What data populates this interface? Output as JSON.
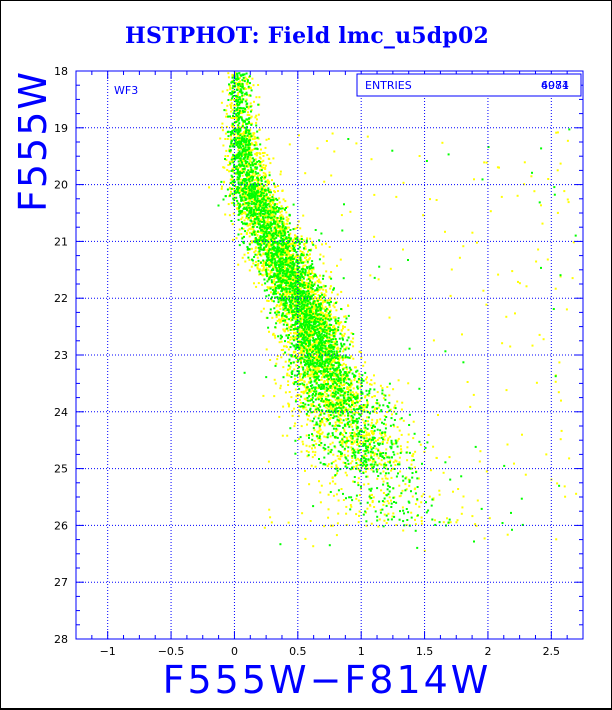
{
  "title": "HSTPHOT: Field lmc_u5dp02",
  "colors": {
    "title": "#0000ff",
    "frame": "#0000ff",
    "grid": "#0000ff",
    "series_a": "#ffff00",
    "series_b": "#00ff00"
  },
  "chart_data": {
    "type": "scatter",
    "title": "HSTPHOT: Field lmc_u5dp02",
    "xlabel": "F555W−F814W",
    "ylabel": "F555W",
    "xlim": [
      -1.25,
      2.75
    ],
    "ylim": [
      28,
      18
    ],
    "y_inverted": true,
    "xticks": [
      "−1",
      "−0.5",
      "0",
      "0.5",
      "1",
      "1.5",
      "2",
      "2.5"
    ],
    "xtick_values": [
      -1,
      -0.5,
      0,
      0.5,
      1,
      1.5,
      2,
      2.5
    ],
    "yticks": [
      "18",
      "19",
      "20",
      "21",
      "22",
      "23",
      "24",
      "25",
      "26",
      "27",
      "28"
    ],
    "ytick_values": [
      18,
      19,
      20,
      21,
      22,
      23,
      24,
      25,
      26,
      27,
      28
    ],
    "grid": true,
    "panel_label": "WF3",
    "stats_box": {
      "label": "ENTRIES",
      "values": [
        "6974",
        "4081"
      ]
    },
    "series": [
      {
        "color": "#ffff00",
        "sequence": [
          {
            "mag": 18.0,
            "color": 0.03,
            "width": 0.05,
            "n": 180
          },
          {
            "mag": 19.0,
            "color": 0.05,
            "width": 0.07,
            "n": 340
          },
          {
            "mag": 20.0,
            "color": 0.12,
            "width": 0.1,
            "n": 640
          },
          {
            "mag": 21.0,
            "color": 0.32,
            "width": 0.12,
            "n": 820
          },
          {
            "mag": 22.0,
            "color": 0.52,
            "width": 0.12,
            "n": 880
          },
          {
            "mag": 23.0,
            "color": 0.66,
            "width": 0.13,
            "n": 700
          },
          {
            "mag": 24.0,
            "color": 0.84,
            "width": 0.18,
            "n": 380
          },
          {
            "mag": 25.0,
            "color": 1.05,
            "width": 0.25,
            "n": 140
          },
          {
            "mag": 26.0,
            "color": 1.3,
            "width": 0.3,
            "n": 0
          }
        ],
        "field_stars": 180
      },
      {
        "color": "#00ff00",
        "sequence": [
          {
            "mag": 18.0,
            "color": 0.03,
            "width": 0.04,
            "n": 160
          },
          {
            "mag": 19.0,
            "color": 0.04,
            "width": 0.05,
            "n": 320
          },
          {
            "mag": 20.0,
            "color": 0.1,
            "width": 0.08,
            "n": 520
          },
          {
            "mag": 21.0,
            "color": 0.31,
            "width": 0.11,
            "n": 600
          },
          {
            "mag": 22.0,
            "color": 0.51,
            "width": 0.11,
            "n": 620
          },
          {
            "mag": 23.0,
            "color": 0.66,
            "width": 0.12,
            "n": 520
          },
          {
            "mag": 24.0,
            "color": 0.86,
            "width": 0.17,
            "n": 300
          },
          {
            "mag": 25.0,
            "color": 1.08,
            "width": 0.22,
            "n": 110
          },
          {
            "mag": 26.0,
            "color": 1.35,
            "width": 0.3,
            "n": 0
          }
        ],
        "field_stars": 60
      }
    ]
  }
}
